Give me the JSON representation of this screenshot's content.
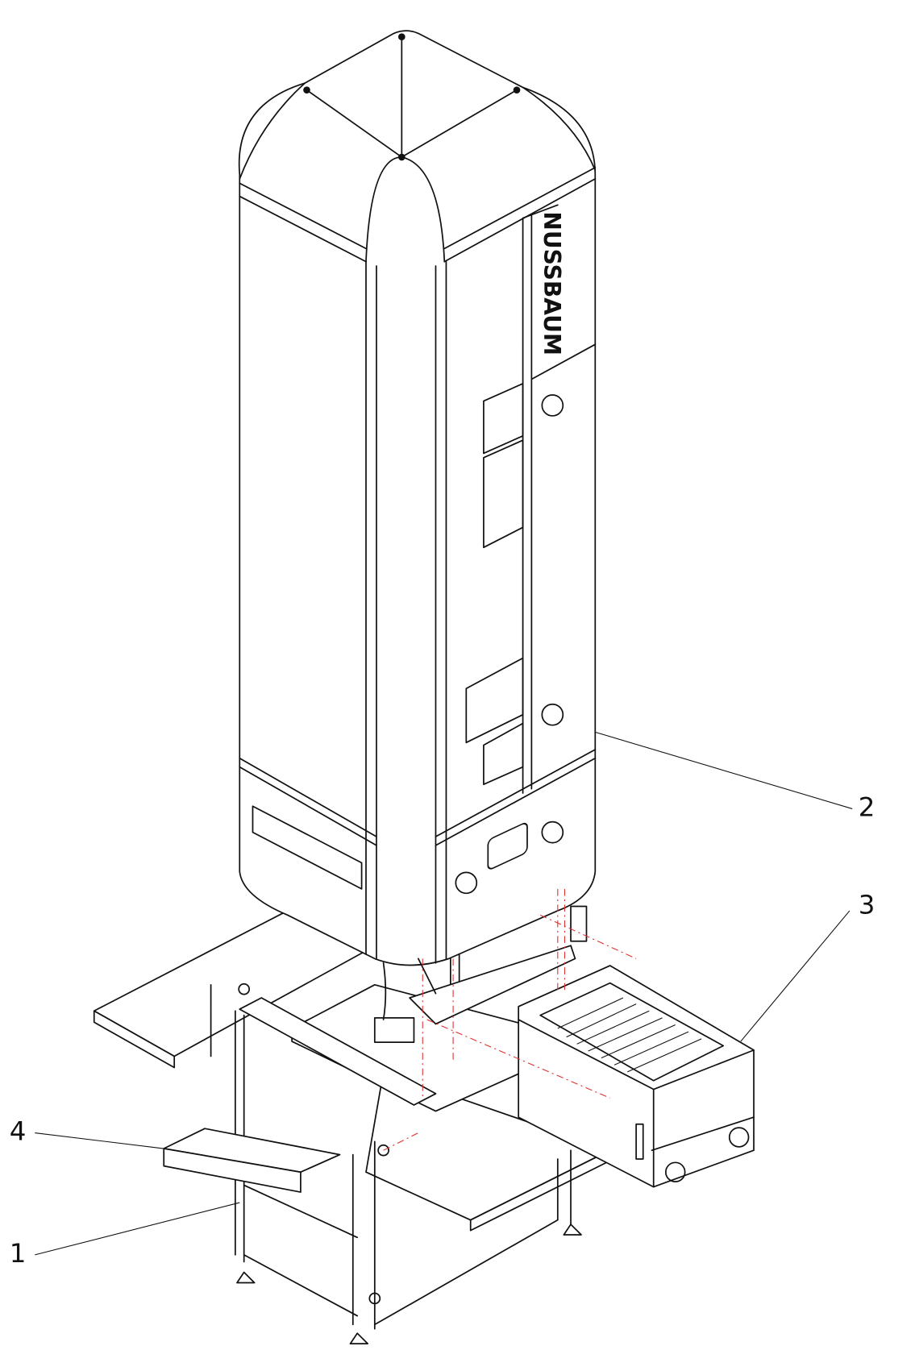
{
  "brand": "NUSSBAUM",
  "callouts": [
    {
      "label": "1"
    },
    {
      "label": "2"
    },
    {
      "label": "3"
    },
    {
      "label": "4"
    }
  ]
}
